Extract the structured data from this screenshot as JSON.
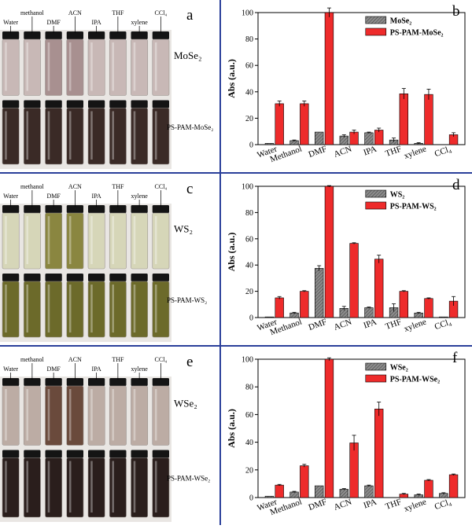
{
  "categories": [
    "Water",
    "Methanol",
    "DMF",
    "ACN",
    "IPA",
    "THF",
    "xylene",
    "CCl₄"
  ],
  "photo_solvents": [
    "Water",
    "methanol",
    "DMF",
    "ACN",
    "IPA",
    "THF",
    "xylene",
    "CCl₄"
  ],
  "colors": {
    "grey_bar": "#8c8c8c",
    "red_bar": "#ee2b2b",
    "divider": "#2a3f9a"
  },
  "panels": [
    {
      "photo_letter": "a",
      "chart_letter": "b",
      "top_label": "MoSe₂",
      "bottom_label": "PS-PAM-MoSe₂",
      "top_vial": "#c8b8b6",
      "top_vial_dark": "#a89090",
      "bottom_vial": "#3a2a26"
    },
    {
      "photo_letter": "c",
      "chart_letter": "d",
      "top_label": "WS₂",
      "bottom_label": "PS-PAM-WS₂",
      "top_vial": "#d6d6b8",
      "top_vial_dark": "#8a8640",
      "bottom_vial": "#6c6a2a"
    },
    {
      "photo_letter": "e",
      "chart_letter": "f",
      "top_label": "WSe₂",
      "bottom_label": "PS-PAM-WSe₂",
      "top_vial": "#bcaca4",
      "top_vial_dark": "#6a4a3c",
      "bottom_vial": "#2a1e1c"
    }
  ],
  "chart_data": [
    {
      "type": "bar",
      "ylabel": "Abs (a.u.)",
      "ylim": [
        0,
        100
      ],
      "yticks": [
        0,
        20,
        40,
        60,
        80,
        100
      ],
      "categories": [
        "Water",
        "Methanol",
        "DMF",
        "ACN",
        "IPA",
        "THF",
        "xylene",
        "CCl₄"
      ],
      "legend_position": "top-right",
      "series": [
        {
          "name": "MoSe₂",
          "color": "#8c8c8c",
          "values": [
            1,
            3,
            9.5,
            6.5,
            9,
            3.5,
            1,
            0
          ],
          "errors": [
            0,
            0.5,
            0,
            1,
            0.5,
            1.5,
            0.5,
            0
          ]
        },
        {
          "name": "PS-PAM-MoSe₂",
          "color": "#ee2b2b",
          "values": [
            31,
            31,
            100,
            9.5,
            11,
            38.5,
            38,
            7.5
          ],
          "errors": [
            2,
            2,
            3.5,
            1.5,
            1.5,
            4,
            4,
            1.5
          ]
        }
      ]
    },
    {
      "type": "bar",
      "ylabel": "Abs (a.u.)",
      "ylim": [
        0,
        100
      ],
      "yticks": [
        0,
        20,
        40,
        60,
        80,
        100
      ],
      "categories": [
        "Water",
        "Methanol",
        "DMF",
        "ACN",
        "IPA",
        "THF",
        "xylene",
        "CCl₄"
      ],
      "legend_position": "top-right",
      "series": [
        {
          "name": "WS₂",
          "color": "#8c8c8c",
          "values": [
            0.5,
            3.5,
            37.5,
            7,
            7.5,
            7.5,
            3.5,
            0.5
          ],
          "errors": [
            0,
            0.5,
            2,
            1.5,
            0.5,
            3,
            0.5,
            0
          ]
        },
        {
          "name": "PS-PAM-WS₂",
          "color": "#ee2b2b",
          "values": [
            15,
            20,
            100,
            56.5,
            44.5,
            20,
            14.5,
            12.5
          ],
          "errors": [
            1,
            0.5,
            0.5,
            0.5,
            3,
            0.5,
            0.5,
            3.5
          ]
        }
      ]
    },
    {
      "type": "bar",
      "ylabel": "Abs (a.u.)",
      "ylim": [
        0,
        100
      ],
      "yticks": [
        0,
        20,
        40,
        60,
        80,
        100
      ],
      "categories": [
        "Water",
        "Methanol",
        "DMF",
        "ACN",
        "IPA",
        "THF",
        "xylene",
        "CCl₄"
      ],
      "legend_position": "top-right",
      "series": [
        {
          "name": "WSe₂",
          "color": "#8c8c8c",
          "values": [
            1,
            4,
            8.5,
            6,
            8.5,
            0,
            2,
            3
          ],
          "errors": [
            0,
            0.5,
            0,
            0.5,
            0.5,
            0,
            0.5,
            0.5
          ]
        },
        {
          "name": "PS-PAM-WSe₂",
          "color": "#ee2b2b",
          "values": [
            9,
            23,
            100,
            39.5,
            64,
            2.5,
            12.5,
            16.5
          ],
          "errors": [
            0.5,
            1,
            1,
            5.5,
            5,
            0.5,
            0.5,
            0.5
          ]
        }
      ]
    }
  ]
}
